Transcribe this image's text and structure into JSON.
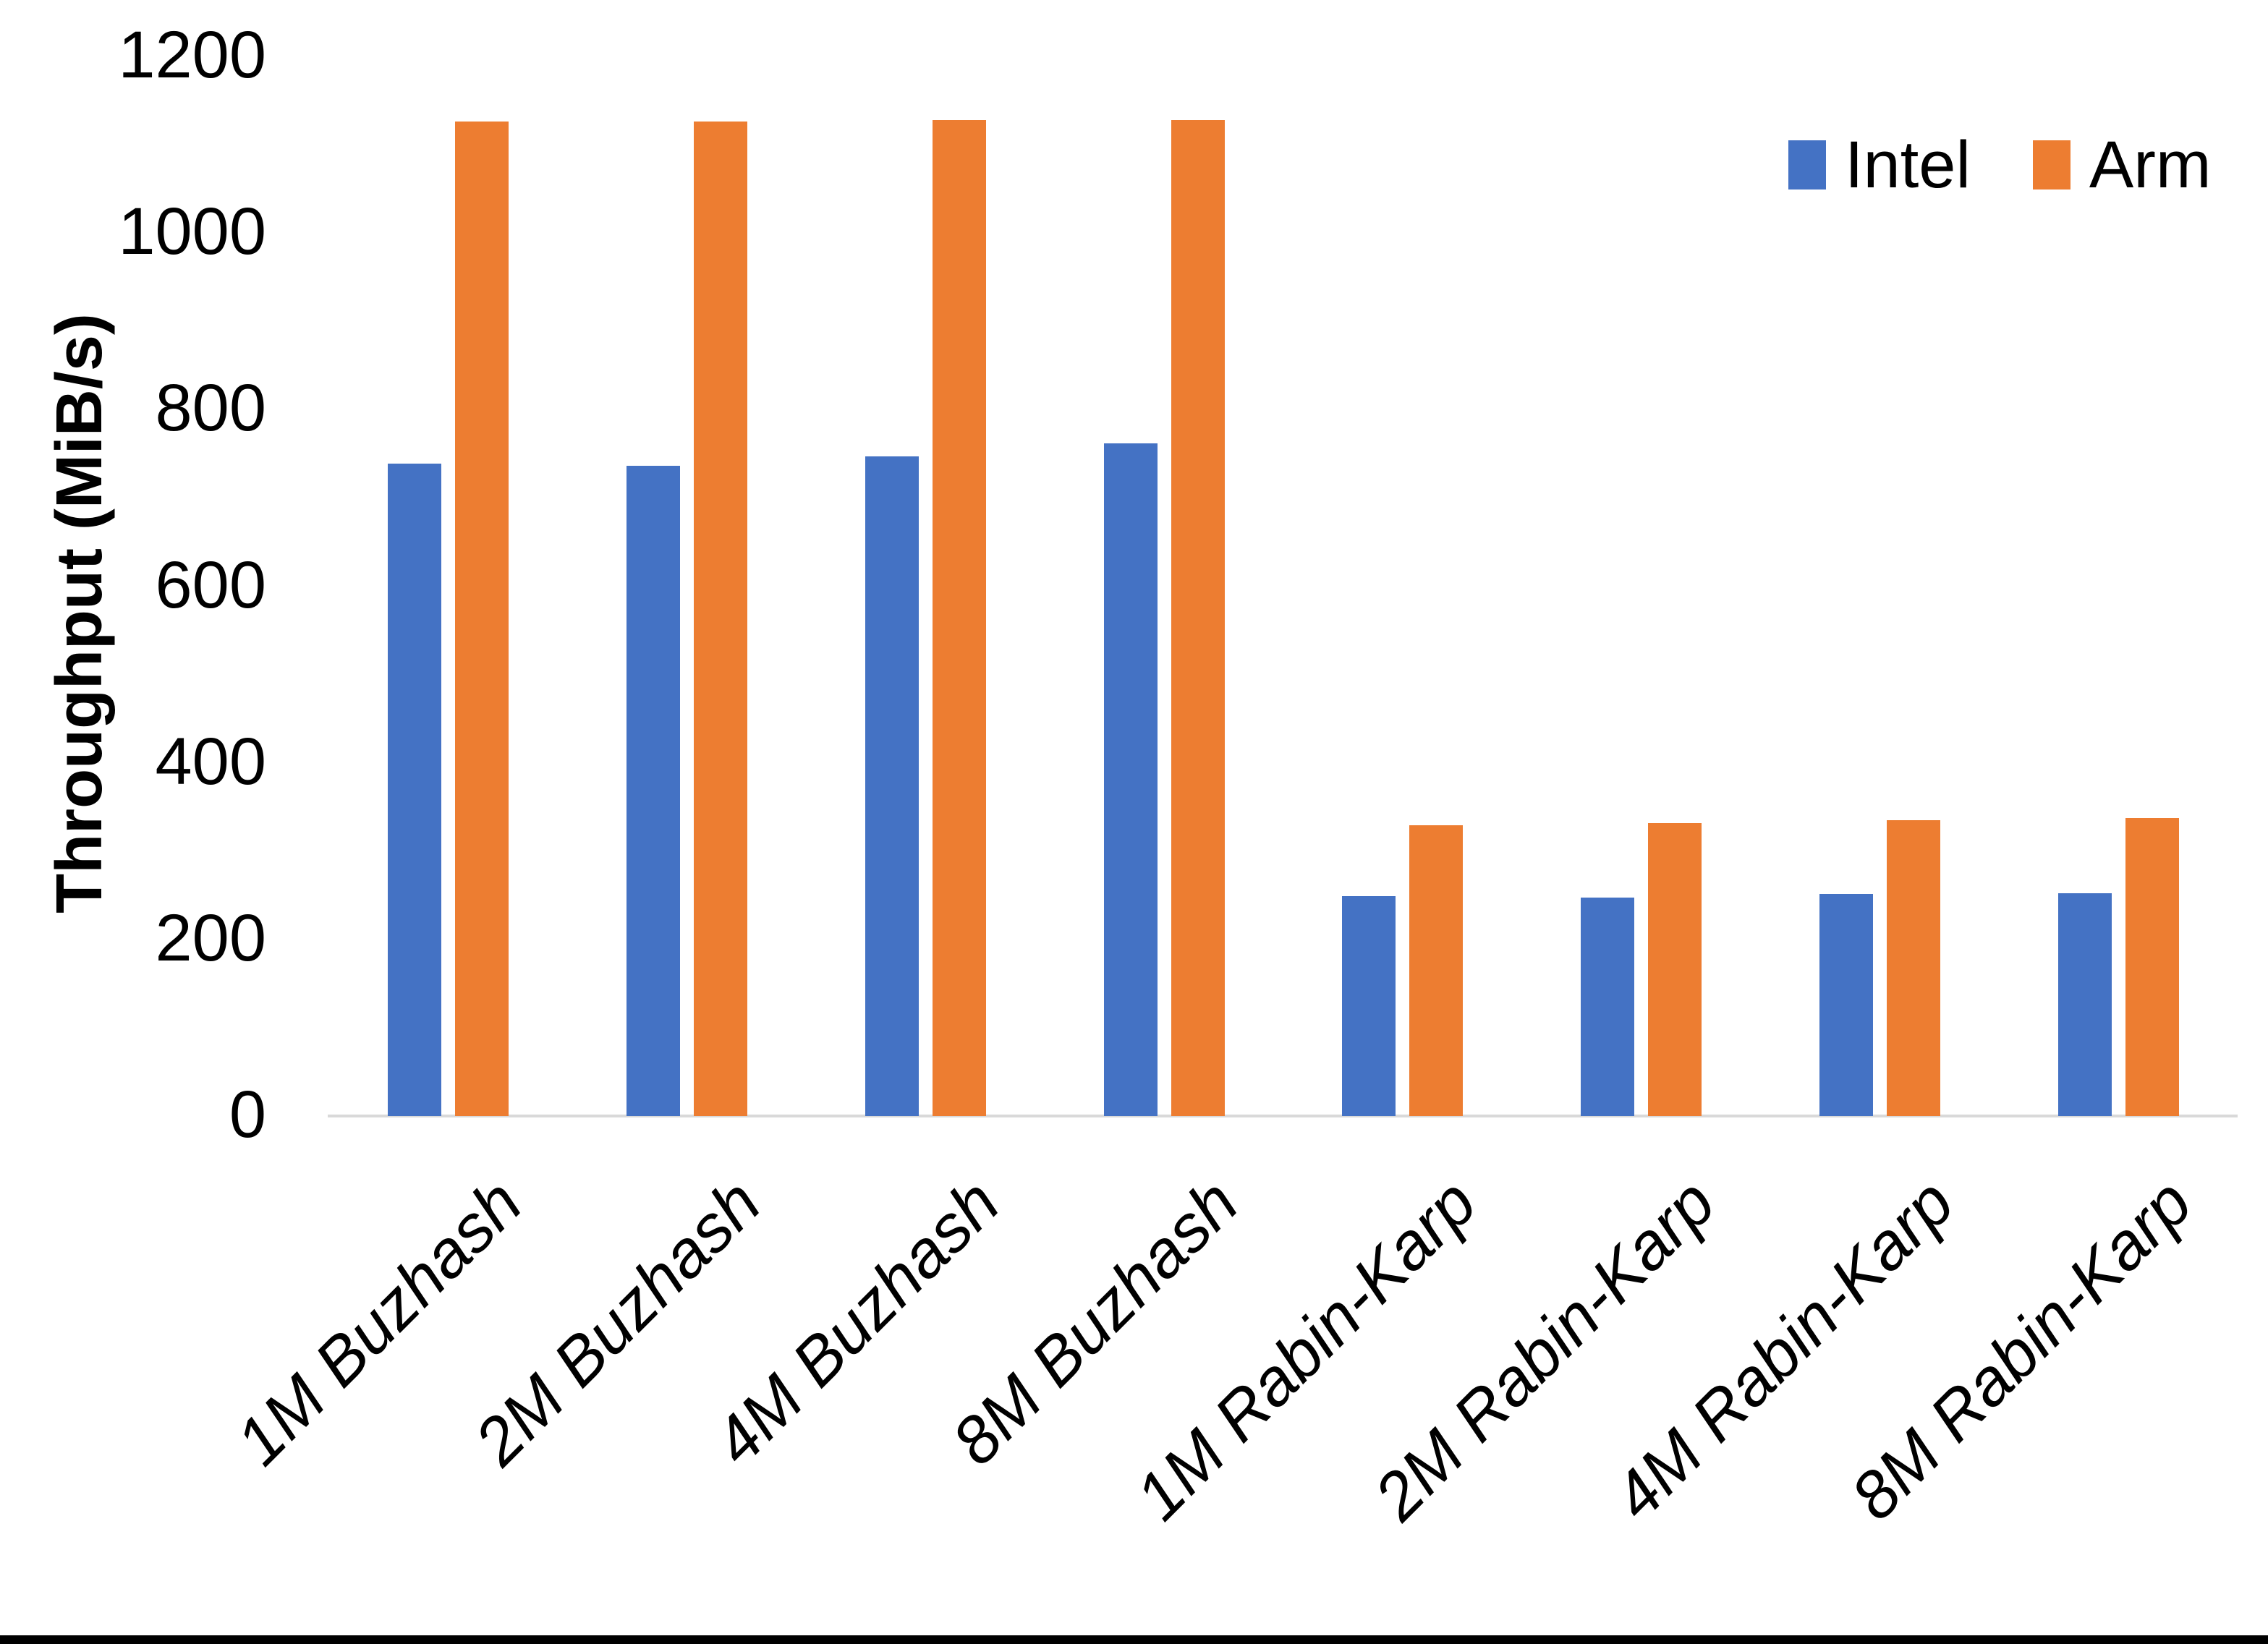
{
  "chart_data": {
    "type": "bar",
    "title": "",
    "xlabel": "",
    "ylabel": "Throughput (MiB/s)",
    "categories": [
      "1M Buzhash",
      "2M Buzhash",
      "4M Buzhash",
      "8M Buzhash",
      "1M Rabin-Karp",
      "2M Rabin-Karp",
      "4M Rabin-Karp",
      "8M Rabin-Karp"
    ],
    "series": [
      {
        "name": "Intel",
        "color": "#4472C4",
        "values": [
          737,
          735,
          745,
          760,
          247,
          246,
          250,
          251
        ]
      },
      {
        "name": "Arm",
        "color": "#ED7D31",
        "values": [
          1125,
          1125,
          1126,
          1126,
          328,
          330,
          333,
          336
        ]
      }
    ],
    "ylim": [
      0,
      1200
    ],
    "yticks": [
      0,
      200,
      400,
      600,
      800,
      1000,
      1200
    ],
    "grid": false,
    "legend_position": "top-right"
  },
  "axes": {
    "y_title": "Throughput (MiB/s)",
    "y_tick_labels": [
      "1200",
      "1000",
      "800",
      "600",
      "400",
      "200",
      "0"
    ]
  },
  "legend": {
    "items": [
      {
        "label": "Intel",
        "color": "#4472C4"
      },
      {
        "label": "Arm",
        "color": "#ED7D31"
      }
    ]
  },
  "colors": {
    "background": "#FFFFFF",
    "text": "#000000",
    "axis_line": "#D9D9D9",
    "intel_bar": "#4472C4",
    "arm_bar": "#ED7D31",
    "bottom_border": "#000000"
  }
}
